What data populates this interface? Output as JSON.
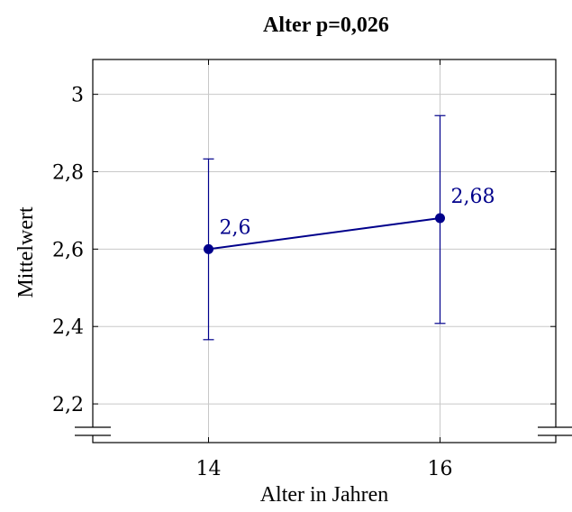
{
  "chart_data": {
    "type": "line",
    "title": "Alter p=0,026",
    "xlabel": "Alter in Jahren",
    "ylabel": "Mittelwert",
    "x": [
      14,
      16
    ],
    "x_tick_labels": [
      "14",
      "16"
    ],
    "xlim": [
      13,
      17
    ],
    "ylim": [
      2.1,
      3.09
    ],
    "y_ticks": [
      2.2,
      2.4,
      2.6,
      2.8,
      3.0
    ],
    "y_tick_labels": [
      "2,2",
      "2,4",
      "2,6",
      "2,8",
      "3"
    ],
    "y_axis_break": true,
    "grid": true,
    "series": [
      {
        "values": [
          2.6,
          2.68
        ],
        "error_low": [
          2.366,
          2.408
        ],
        "error_high": [
          2.833,
          2.945
        ],
        "data_labels": [
          "2,6",
          "2,68"
        ],
        "color": "#00008b"
      }
    ]
  }
}
